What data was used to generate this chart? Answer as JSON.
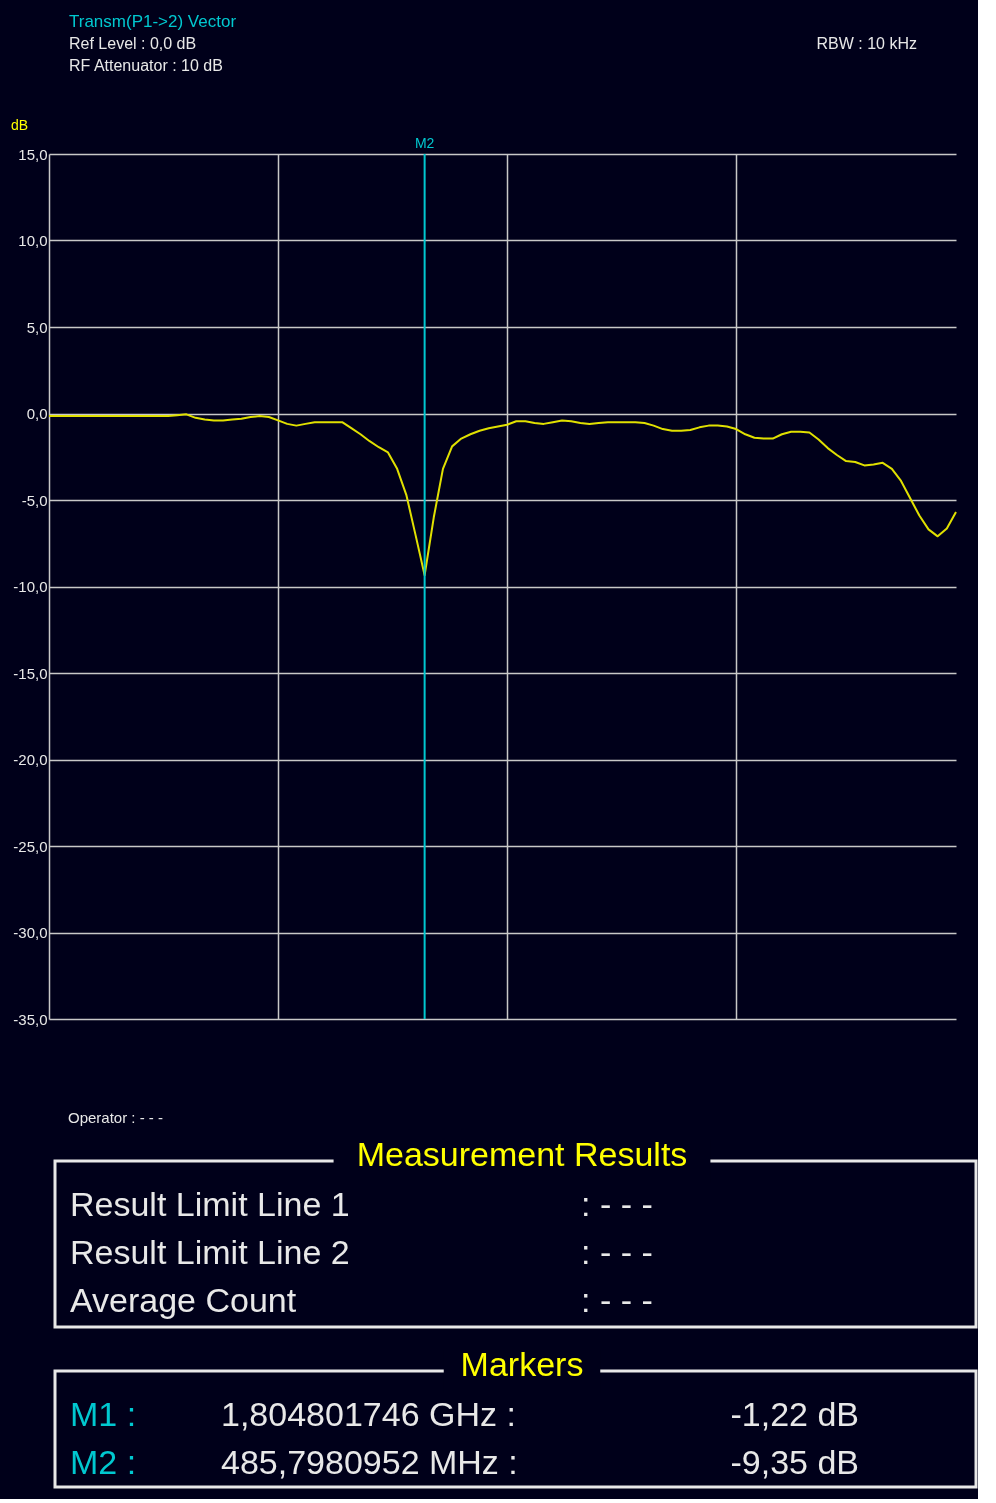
{
  "chart_data": {
    "type": "line",
    "title": "Transm(P1->2) Vector",
    "subtitle": [
      "Ref Level     :   0,0 dB",
      "RF Attenuator : 10    dB"
    ],
    "ylabel": "dB",
    "categories": [
      null,
      null,
      null,
      null,
      null,
      null,
      null,
      null,
      null,
      null,
      null,
      null,
      null,
      null,
      null,
      null,
      null,
      null,
      null,
      null,
      null,
      null,
      null,
      null,
      null,
      null,
      null,
      null,
      null,
      null,
      null,
      null,
      null,
      null,
      null,
      null,
      null,
      null,
      null,
      null,
      null,
      null,
      null,
      null,
      null,
      null,
      null,
      null,
      null,
      null,
      null,
      null,
      null,
      null,
      null,
      null,
      null,
      null,
      null,
      null,
      null,
      null,
      null,
      null,
      null,
      null,
      null,
      null,
      null,
      null,
      null,
      null,
      null,
      null,
      null,
      null,
      null,
      null,
      null,
      null,
      null,
      null,
      null,
      null,
      null,
      null,
      null,
      null,
      null,
      null,
      null,
      null,
      null,
      null,
      null,
      null,
      null,
      null,
      null,
      null
    ],
    "series": [
      {
        "color": "#e0e000",
        "values": [
          -0.15,
          -0.15,
          -0.15,
          -0.15,
          -0.15,
          -0.15,
          -0.15,
          -0.15,
          -0.15,
          -0.15,
          -0.15,
          -0.15,
          -0.15,
          -0.15,
          -0.1,
          -0.05,
          -0.25,
          -0.35,
          -0.4,
          -0.4,
          -0.35,
          -0.3,
          -0.2,
          -0.15,
          -0.2,
          -0.4,
          -0.6,
          -0.7,
          -0.6,
          -0.5,
          -0.5,
          -0.5,
          -0.5,
          -0.85,
          -1.2,
          -1.6,
          -1.95,
          -2.25,
          -3.2,
          -4.7,
          -7.0,
          -9.35,
          -6.0,
          -3.2,
          -1.9,
          -1.45,
          -1.2,
          -1.0,
          -0.85,
          -0.75,
          -0.65,
          -0.45,
          -0.45,
          -0.55,
          -0.6,
          -0.5,
          -0.4,
          -0.45,
          -0.55,
          -0.6,
          -0.55,
          -0.5,
          -0.5,
          -0.5,
          -0.5,
          -0.55,
          -0.7,
          -0.9,
          -1.0,
          -1.0,
          -0.95,
          -0.8,
          -0.7,
          -0.7,
          -0.75,
          -0.9,
          -1.2,
          -1.4,
          -1.45,
          -1.45,
          -1.2,
          -1.05,
          -1.05,
          -1.1,
          -1.5,
          -2.0,
          -2.4,
          -2.75,
          -2.8,
          -3.0,
          -2.95,
          -2.85,
          -3.2,
          -3.9,
          -4.9,
          -5.9,
          -6.7,
          -7.1,
          -6.65,
          -5.7
        ]
      }
    ],
    "ylim": [
      -35,
      15
    ],
    "yticks": [
      {
        "value": 15,
        "label": "15,0"
      },
      {
        "value": 10,
        "label": "10,0"
      },
      {
        "value": 5,
        "label": "5,0"
      },
      {
        "value": 0,
        "label": "0,0"
      },
      {
        "value": -5,
        "label": "-5,0"
      },
      {
        "value": -10,
        "label": "-10,0"
      },
      {
        "value": -15,
        "label": "-15,0"
      },
      {
        "value": -20,
        "label": "-20,0"
      },
      {
        "value": -25,
        "label": "-25,0"
      },
      {
        "value": -30,
        "label": "-30,0"
      },
      {
        "value": -35,
        "label": "-35,0"
      }
    ],
    "grid": true,
    "annotations": [
      "RBW : 10 kHz",
      "Operator : - - -",
      "Measurement Results",
      "Result Limit Line 1",
      ": - - -",
      "Result Limit Line 2",
      ": - - -",
      "Average Count",
      ": - - -",
      "Markers",
      "M1 :",
      "1,804801746 GHz :",
      "-1,22 dB",
      "M2 :",
      "485,7980952 MHz :",
      "-9,35 dB",
      "M2"
    ]
  }
}
